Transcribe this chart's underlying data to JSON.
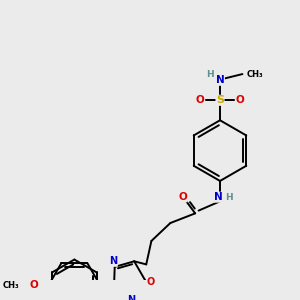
{
  "bg_color": "#ebebeb",
  "atom_colors": {
    "C": "#000000",
    "H": "#5f8f8f",
    "N": "#0000cc",
    "O": "#dd0000",
    "S": "#ccaa00"
  },
  "bond_color": "#000000",
  "bond_width": 1.4,
  "font_size": 7.5,
  "dbo": 0.06
}
